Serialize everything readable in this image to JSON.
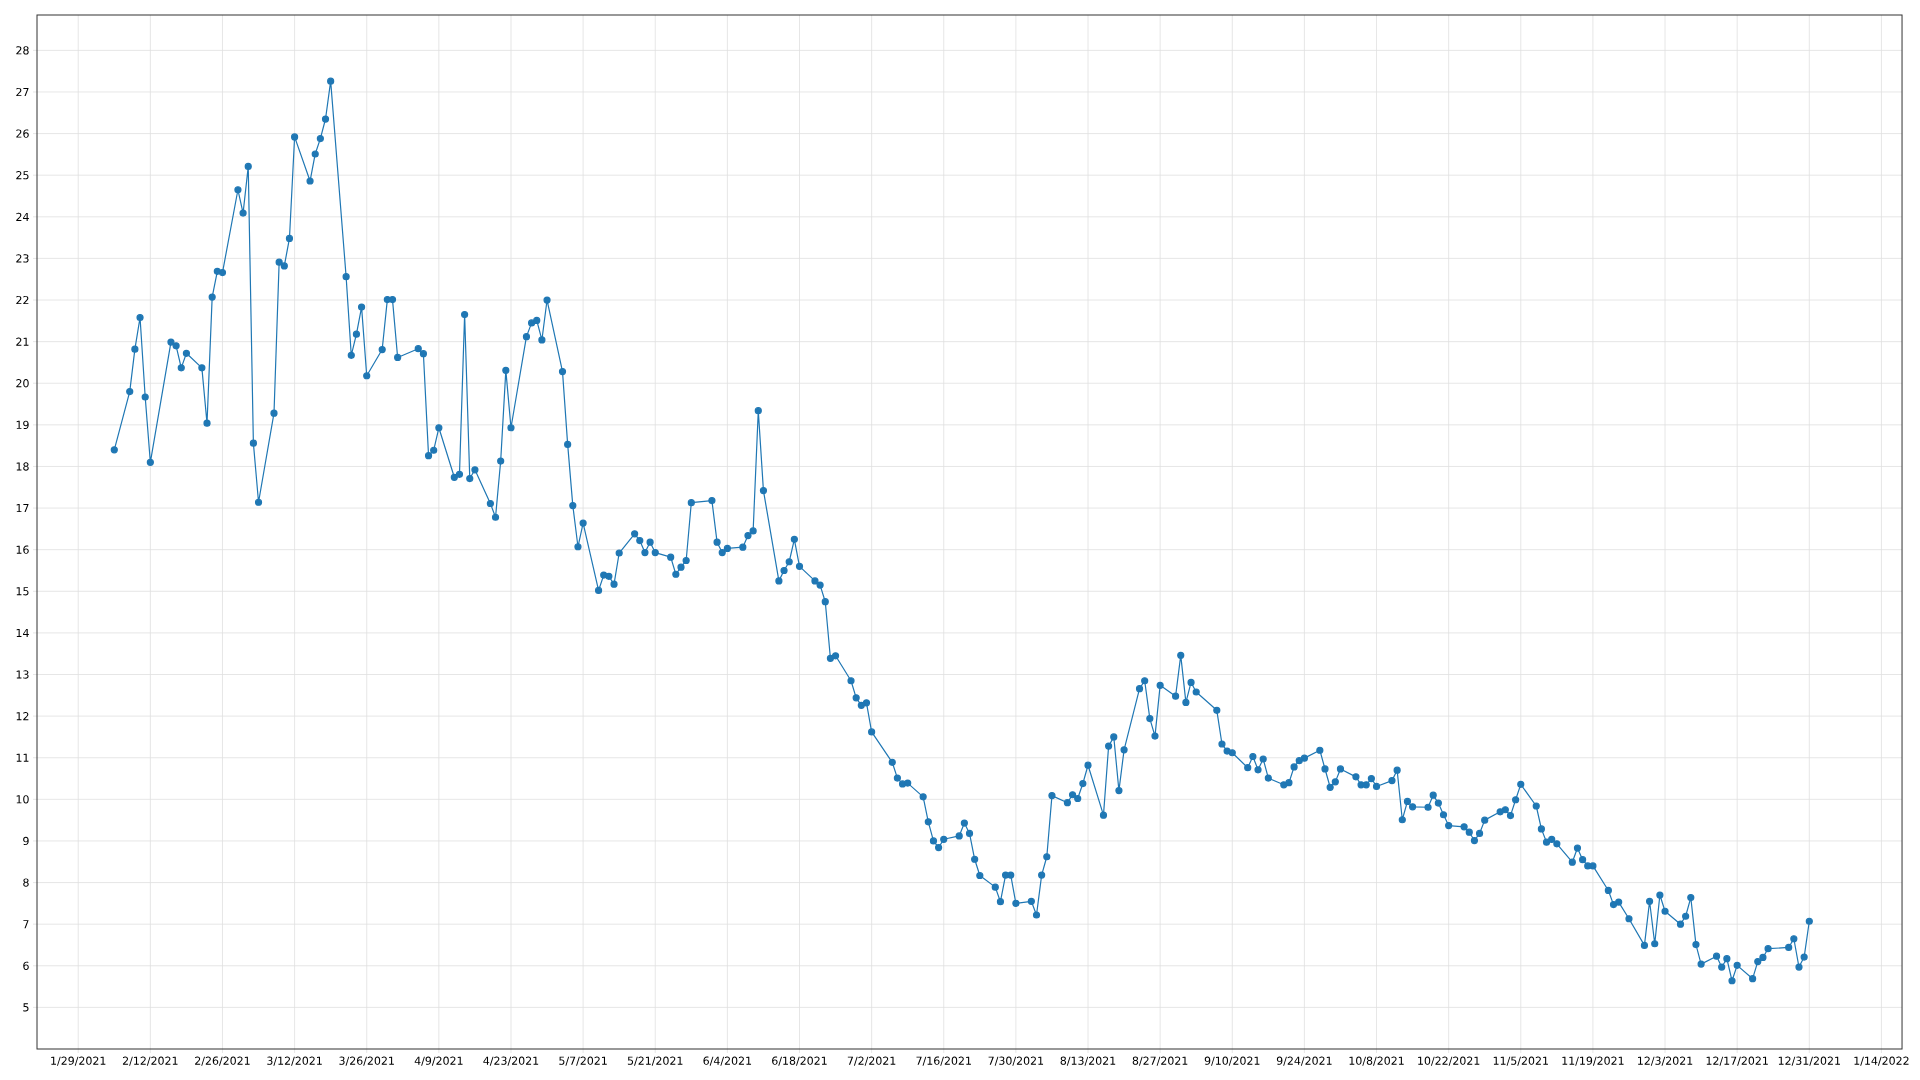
{
  "chart_data": {
    "type": "line",
    "marker": "circle",
    "line_style": "solid",
    "grid": true,
    "xlim": [
      "2021-01-21",
      "2022-01-18"
    ],
    "ylim": [
      4,
      28.85
    ],
    "yticks": [
      5,
      6,
      7,
      8,
      9,
      10,
      11,
      12,
      13,
      14,
      15,
      16,
      17,
      18,
      19,
      20,
      21,
      22,
      23,
      24,
      25,
      26,
      27,
      28
    ],
    "xticks": [
      {
        "value": "2021-01-29",
        "label": "1/29/2021"
      },
      {
        "value": "2021-02-12",
        "label": "2/12/2021"
      },
      {
        "value": "2021-02-26",
        "label": "2/26/2021"
      },
      {
        "value": "2021-03-12",
        "label": "3/12/2021"
      },
      {
        "value": "2021-03-26",
        "label": "3/26/2021"
      },
      {
        "value": "2021-04-09",
        "label": "4/9/2021"
      },
      {
        "value": "2021-04-23",
        "label": "4/23/2021"
      },
      {
        "value": "2021-05-07",
        "label": "5/7/2021"
      },
      {
        "value": "2021-05-21",
        "label": "5/21/2021"
      },
      {
        "value": "2021-06-04",
        "label": "6/4/2021"
      },
      {
        "value": "2021-06-18",
        "label": "6/18/2021"
      },
      {
        "value": "2021-07-02",
        "label": "7/2/2021"
      },
      {
        "value": "2021-07-16",
        "label": "7/16/2021"
      },
      {
        "value": "2021-07-30",
        "label": "7/30/2021"
      },
      {
        "value": "2021-08-13",
        "label": "8/13/2021"
      },
      {
        "value": "2021-08-27",
        "label": "8/27/2021"
      },
      {
        "value": "2021-09-10",
        "label": "9/10/2021"
      },
      {
        "value": "2021-09-24",
        "label": "9/24/2021"
      },
      {
        "value": "2021-10-08",
        "label": "10/8/2021"
      },
      {
        "value": "2021-10-22",
        "label": "10/22/2021"
      },
      {
        "value": "2021-11-05",
        "label": "11/5/2021"
      },
      {
        "value": "2021-11-19",
        "label": "11/19/2021"
      },
      {
        "value": "2021-12-03",
        "label": "12/3/2021"
      },
      {
        "value": "2021-12-17",
        "label": "12/17/2021"
      },
      {
        "value": "2021-12-31",
        "label": "12/31/2021"
      },
      {
        "value": "2022-01-14",
        "label": "1/14/2022"
      }
    ],
    "x": [
      "2021-02-05",
      "2021-02-08",
      "2021-02-09",
      "2021-02-10",
      "2021-02-11",
      "2021-02-12",
      "2021-02-16",
      "2021-02-17",
      "2021-02-18",
      "2021-02-19",
      "2021-02-22",
      "2021-02-23",
      "2021-02-24",
      "2021-02-25",
      "2021-02-26",
      "2021-03-01",
      "2021-03-02",
      "2021-03-03",
      "2021-03-04",
      "2021-03-05",
      "2021-03-08",
      "2021-03-09",
      "2021-03-10",
      "2021-03-11",
      "2021-03-12",
      "2021-03-15",
      "2021-03-16",
      "2021-03-17",
      "2021-03-18",
      "2021-03-19",
      "2021-03-22",
      "2021-03-23",
      "2021-03-24",
      "2021-03-25",
      "2021-03-26",
      "2021-03-29",
      "2021-03-30",
      "2021-03-31",
      "2021-04-01",
      "2021-04-05",
      "2021-04-06",
      "2021-04-07",
      "2021-04-08",
      "2021-04-09",
      "2021-04-12",
      "2021-04-13",
      "2021-04-14",
      "2021-04-15",
      "2021-04-16",
      "2021-04-19",
      "2021-04-20",
      "2021-04-21",
      "2021-04-22",
      "2021-04-23",
      "2021-04-26",
      "2021-04-27",
      "2021-04-28",
      "2021-04-29",
      "2021-04-30",
      "2021-05-03",
      "2021-05-04",
      "2021-05-05",
      "2021-05-06",
      "2021-05-07",
      "2021-05-10",
      "2021-05-11",
      "2021-05-12",
      "2021-05-13",
      "2021-05-14",
      "2021-05-17",
      "2021-05-18",
      "2021-05-19",
      "2021-05-20",
      "2021-05-21",
      "2021-05-24",
      "2021-05-25",
      "2021-05-26",
      "2021-05-27",
      "2021-05-28",
      "2021-06-01",
      "2021-06-02",
      "2021-06-03",
      "2021-06-04",
      "2021-06-07",
      "2021-06-08",
      "2021-06-09",
      "2021-06-10",
      "2021-06-11",
      "2021-06-14",
      "2021-06-15",
      "2021-06-16",
      "2021-06-17",
      "2021-06-18",
      "2021-06-21",
      "2021-06-22",
      "2021-06-23",
      "2021-06-24",
      "2021-06-25",
      "2021-06-28",
      "2021-06-29",
      "2021-06-30",
      "2021-07-01",
      "2021-07-02",
      "2021-07-06",
      "2021-07-07",
      "2021-07-08",
      "2021-07-09",
      "2021-07-12",
      "2021-07-13",
      "2021-07-14",
      "2021-07-15",
      "2021-07-16",
      "2021-07-19",
      "2021-07-20",
      "2021-07-21",
      "2021-07-22",
      "2021-07-23",
      "2021-07-26",
      "2021-07-27",
      "2021-07-28",
      "2021-07-29",
      "2021-07-30",
      "2021-08-02",
      "2021-08-03",
      "2021-08-04",
      "2021-08-05",
      "2021-08-06",
      "2021-08-09",
      "2021-08-10",
      "2021-08-11",
      "2021-08-12",
      "2021-08-13",
      "2021-08-16",
      "2021-08-17",
      "2021-08-18",
      "2021-08-19",
      "2021-08-20",
      "2021-08-23",
      "2021-08-24",
      "2021-08-25",
      "2021-08-26",
      "2021-08-27",
      "2021-08-30",
      "2021-08-31",
      "2021-09-01",
      "2021-09-02",
      "2021-09-03",
      "2021-09-07",
      "2021-09-08",
      "2021-09-09",
      "2021-09-10",
      "2021-09-13",
      "2021-09-14",
      "2021-09-15",
      "2021-09-16",
      "2021-09-17",
      "2021-09-20",
      "2021-09-21",
      "2021-09-22",
      "2021-09-23",
      "2021-09-24",
      "2021-09-27",
      "2021-09-28",
      "2021-09-29",
      "2021-09-30",
      "2021-10-01",
      "2021-10-04",
      "2021-10-05",
      "2021-10-06",
      "2021-10-07",
      "2021-10-08",
      "2021-10-11",
      "2021-10-12",
      "2021-10-13",
      "2021-10-14",
      "2021-10-15",
      "2021-10-18",
      "2021-10-19",
      "2021-10-20",
      "2021-10-21",
      "2021-10-22",
      "2021-10-25",
      "2021-10-26",
      "2021-10-27",
      "2021-10-28",
      "2021-10-29",
      "2021-11-01",
      "2021-11-02",
      "2021-11-03",
      "2021-11-04",
      "2021-11-05",
      "2021-11-08",
      "2021-11-09",
      "2021-11-10",
      "2021-11-11",
      "2021-11-12",
      "2021-11-15",
      "2021-11-16",
      "2021-11-17",
      "2021-11-18",
      "2021-11-19",
      "2021-11-22",
      "2021-11-23",
      "2021-11-24",
      "2021-11-26",
      "2021-11-29",
      "2021-11-30",
      "2021-12-01",
      "2021-12-02",
      "2021-12-03",
      "2021-12-06",
      "2021-12-07",
      "2021-12-08",
      "2021-12-09",
      "2021-12-10",
      "2021-12-13",
      "2021-12-14",
      "2021-12-15",
      "2021-12-16",
      "2021-12-17",
      "2021-12-20",
      "2021-12-21",
      "2021-12-22",
      "2021-12-23",
      "2021-12-27",
      "2021-12-28",
      "2021-12-29",
      "2021-12-30",
      "2021-12-31"
    ],
    "series": [
      {
        "color": "#1f77b4",
        "values": [
          18.4,
          19.8,
          20.82,
          21.58,
          19.67,
          18.1,
          20.99,
          20.9,
          20.37,
          20.72,
          20.37,
          19.04,
          22.07,
          22.69,
          22.66,
          24.65,
          24.09,
          25.21,
          18.56,
          17.14,
          19.28,
          22.91,
          22.82,
          23.48,
          25.92,
          24.86,
          25.51,
          25.88,
          26.35,
          27.26,
          22.56,
          20.67,
          21.18,
          21.83,
          20.18,
          20.81,
          22.01,
          22.01,
          20.62,
          20.83,
          20.71,
          18.26,
          18.39,
          18.93,
          17.74,
          17.81,
          21.65,
          17.71,
          17.92,
          17.11,
          16.78,
          18.13,
          20.31,
          18.93,
          21.12,
          21.45,
          21.51,
          21.04,
          22.0,
          20.28,
          18.53,
          17.06,
          16.07,
          16.64,
          15.02,
          15.39,
          15.36,
          15.17,
          15.92,
          16.38,
          16.22,
          15.93,
          16.18,
          15.93,
          15.82,
          15.41,
          15.58,
          15.74,
          17.13,
          17.18,
          16.18,
          15.93,
          16.03,
          16.06,
          16.34,
          16.45,
          19.34,
          17.42,
          15.25,
          15.5,
          15.71,
          16.25,
          15.6,
          15.25,
          15.15,
          14.75,
          13.39,
          13.45,
          12.85,
          12.44,
          12.26,
          12.32,
          11.62,
          10.89,
          10.51,
          10.37,
          10.39,
          10.06,
          9.46,
          9.0,
          8.84,
          9.04,
          9.12,
          9.43,
          9.18,
          8.56,
          8.17,
          7.89,
          7.54,
          8.18,
          8.18,
          7.5,
          7.55,
          7.22,
          8.18,
          8.62,
          10.09,
          9.92,
          10.11,
          10.02,
          10.38,
          10.82,
          9.62,
          11.28,
          11.5,
          10.21,
          11.19,
          12.66,
          12.85,
          11.94,
          11.52,
          12.74,
          12.48,
          13.46,
          12.33,
          12.81,
          12.58,
          12.14,
          11.33,
          11.16,
          11.12,
          10.76,
          11.03,
          10.71,
          10.97,
          10.51,
          10.35,
          10.4,
          10.78,
          10.93,
          10.99,
          11.18,
          10.73,
          10.29,
          10.42,
          10.73,
          10.54,
          10.35,
          10.35,
          10.5,
          10.31,
          10.45,
          10.7,
          9.51,
          9.95,
          9.82,
          9.81,
          10.1,
          9.91,
          9.63,
          9.37,
          9.34,
          9.21,
          9.01,
          9.18,
          9.5,
          9.7,
          9.75,
          9.61,
          9.99,
          10.36,
          9.84,
          9.29,
          8.97,
          9.04,
          8.93,
          8.49,
          8.83,
          8.55,
          8.4,
          8.4,
          7.81,
          7.47,
          7.53,
          7.13,
          6.49,
          7.55,
          6.53,
          7.7,
          7.31,
          7.0,
          7.19,
          7.64,
          6.51,
          6.04,
          6.23,
          5.97,
          6.17,
          5.64,
          6.01,
          5.69,
          6.1,
          6.2,
          6.41,
          6.44,
          6.65,
          5.97,
          6.21,
          7.07
        ]
      }
    ]
  }
}
